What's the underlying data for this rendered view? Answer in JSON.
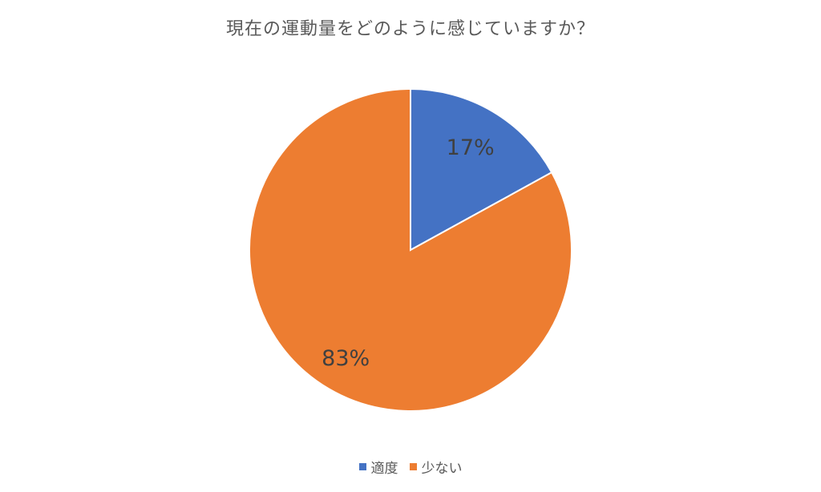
{
  "chart_data": {
    "type": "pie",
    "title": "現在の運動量をどのように感じていますか？",
    "categories": [
      "適度",
      "少ない"
    ],
    "values": [
      17,
      83
    ],
    "labels": [
      "17%",
      "83%"
    ],
    "colors": [
      "#4472C4",
      "#ED7D31"
    ],
    "legend_position": "bottom"
  }
}
